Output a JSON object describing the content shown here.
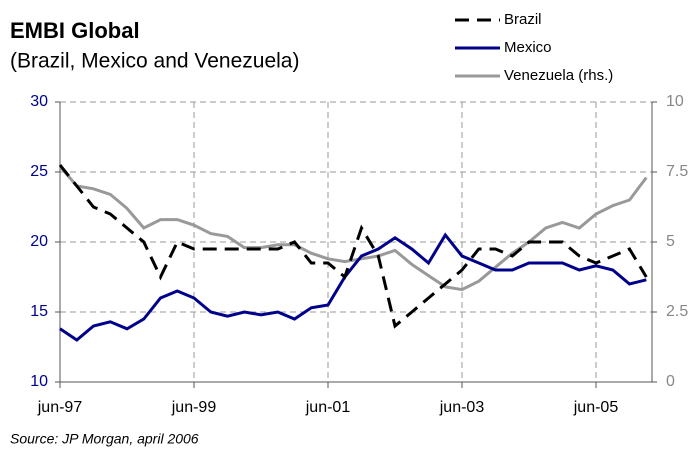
{
  "chart_data": {
    "type": "line",
    "title": "EMBI Global",
    "subtitle": "(Brazil, Mexico and Venezuela)",
    "source": "Source: JP Morgan, april 2006",
    "categories": [
      "jun-97",
      null,
      null,
      null,
      null,
      null,
      null,
      null,
      "jun-99",
      null,
      null,
      null,
      null,
      null,
      null,
      null,
      "jun-01",
      null,
      null,
      null,
      null,
      null,
      null,
      null,
      "jun-03",
      null,
      null,
      null,
      null,
      null,
      null,
      null,
      "jun-05",
      null,
      null,
      null
    ],
    "series": [
      {
        "name": "Brazil",
        "color": "#000000",
        "line_style": "dashed",
        "values": [
          25.5,
          24,
          22.5,
          22,
          21,
          20,
          17.5,
          20,
          19.5,
          19.5,
          19.5,
          19.5,
          19.5,
          19.5,
          20,
          18.5,
          18.5,
          17.5,
          21,
          19,
          14,
          15,
          16,
          17,
          18,
          19.5,
          19.5,
          19,
          20,
          20,
          20,
          19,
          18.5,
          19,
          19.5,
          17.5
        ]
      },
      {
        "name": "Mexico",
        "color": "#00008b",
        "line_style": "solid",
        "values": [
          13.8,
          13,
          14,
          14.3,
          13.8,
          14.5,
          16,
          16.5,
          16,
          15,
          14.7,
          15,
          14.8,
          15,
          14.5,
          15.3,
          15.5,
          17.5,
          19,
          19.5,
          20.3,
          19.5,
          18.5,
          20.5,
          19,
          18.5,
          18,
          18,
          18.5,
          18.5,
          18.5,
          18,
          18.3,
          18,
          17,
          17.3
        ]
      },
      {
        "name": "Venezuela (rhs.)",
        "color": "#999999",
        "line_style": "solid",
        "axis": "y2",
        "values": [
          7.7,
          7,
          6.9,
          6.7,
          6.2,
          5.5,
          5.8,
          5.8,
          5.6,
          5.3,
          5.2,
          4.8,
          4.8,
          4.9,
          4.9,
          4.6,
          4.4,
          4.3,
          4.4,
          4.5,
          4.7,
          4.2,
          3.8,
          3.4,
          3.3,
          3.6,
          4.1,
          4.6,
          5,
          5.5,
          5.7,
          5.5,
          6,
          6.3,
          6.5,
          7.3
        ]
      }
    ],
    "ylim": [
      10,
      30
    ],
    "yticks": [
      10,
      15,
      20,
      25,
      30
    ],
    "y2lim": [
      0,
      10
    ],
    "y2ticks": [
      0,
      2.5,
      5,
      7.5,
      10
    ],
    "grid": true
  }
}
